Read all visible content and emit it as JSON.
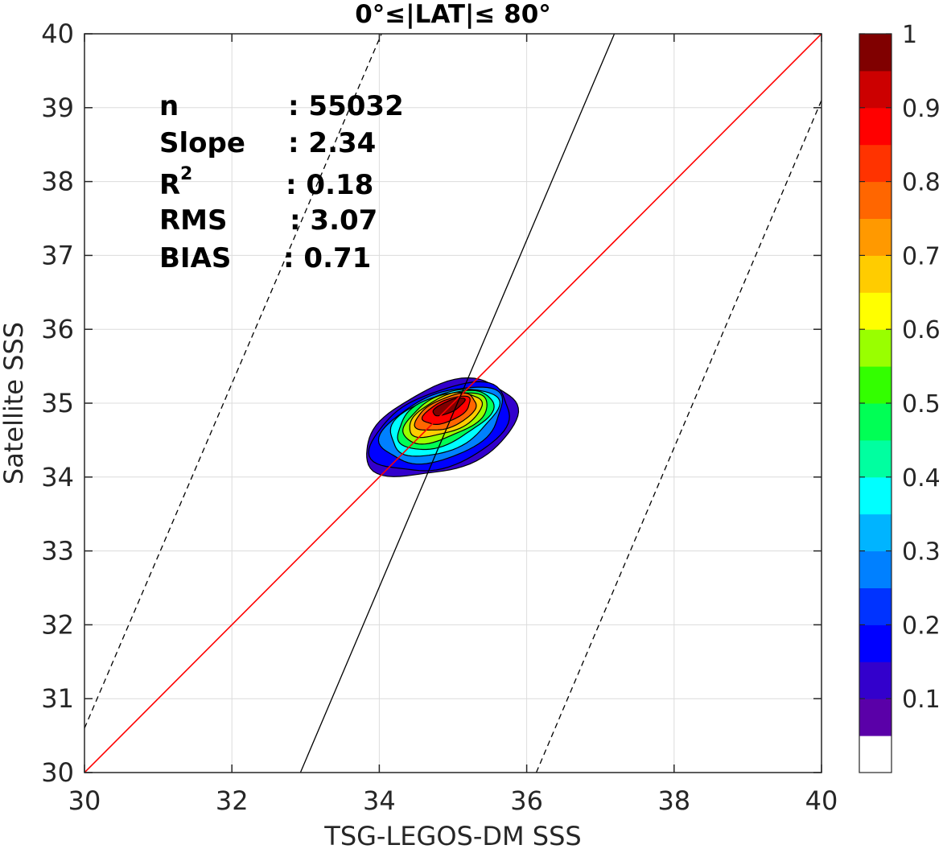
{
  "chart_data": {
    "type": "contour",
    "title": "0°≤|LAT|≤ 80°",
    "xlabel": "TSG-LEGOS-DM SSS",
    "ylabel": "Satellite SSS",
    "xlim": [
      30,
      40
    ],
    "ylim": [
      30,
      40
    ],
    "x_ticks": [
      "30",
      "32",
      "34",
      "36",
      "38",
      "40"
    ],
    "y_ticks": [
      "30",
      "31",
      "32",
      "33",
      "34",
      "35",
      "36",
      "37",
      "38",
      "39",
      "40"
    ],
    "grid": true,
    "stats": [
      {
        "label": "n",
        "value": ": 55032"
      },
      {
        "label": "Slope",
        "value": ": 2.34"
      },
      {
        "label": "R",
        "sup": "2",
        "value": ": 0.18"
      },
      {
        "label": "RMS",
        "value": ": 3.07"
      },
      {
        "label": "BIAS",
        "value": ": 0.71"
      }
    ],
    "lines": [
      {
        "name": "one-to-one",
        "color": "#ff0000",
        "style": "solid",
        "points": [
          [
            30,
            30
          ],
          [
            40,
            40
          ]
        ]
      },
      {
        "name": "regression",
        "color": "#000000",
        "style": "solid",
        "points": [
          [
            32.93,
            30
          ],
          [
            37.19,
            40
          ]
        ]
      },
      {
        "name": "upper-bound",
        "color": "#000000",
        "style": "dashed",
        "points": [
          [
            30,
            30.6
          ],
          [
            34.03,
            40
          ]
        ]
      },
      {
        "name": "lower-bound",
        "color": "#000000",
        "style": "dashed",
        "points": [
          [
            36.13,
            30
          ],
          [
            40,
            39.1
          ]
        ]
      }
    ],
    "density_center": [
      34.92,
      34.95
    ],
    "contour_levels": [
      {
        "level": 0.05,
        "rx": 1.12,
        "ry": 0.78,
        "cx": 34.85,
        "cy": 34.65
      },
      {
        "level": 0.1,
        "rx": 1.0,
        "ry": 0.72,
        "cx": 34.85,
        "cy": 34.66
      },
      {
        "level": 0.2,
        "rx": 0.86,
        "ry": 0.63,
        "cx": 34.86,
        "cy": 34.7
      },
      {
        "level": 0.3,
        "rx": 0.74,
        "ry": 0.56,
        "cx": 34.87,
        "cy": 34.74
      },
      {
        "level": 0.4,
        "rx": 0.64,
        "ry": 0.5,
        "cx": 34.88,
        "cy": 34.78
      },
      {
        "level": 0.5,
        "rx": 0.55,
        "ry": 0.44,
        "cx": 34.89,
        "cy": 34.81
      },
      {
        "level": 0.6,
        "rx": 0.47,
        "ry": 0.38,
        "cx": 34.9,
        "cy": 34.84
      },
      {
        "level": 0.7,
        "rx": 0.39,
        "ry": 0.32,
        "cx": 34.91,
        "cy": 34.87
      },
      {
        "level": 0.8,
        "rx": 0.28,
        "ry": 0.25,
        "cx": 34.92,
        "cy": 34.9
      },
      {
        "level": 0.9,
        "rx": 0.15,
        "ry": 0.17,
        "cx": 34.94,
        "cy": 34.95
      }
    ],
    "colorbar": {
      "ticks": [
        "0.1",
        "0.2",
        "0.3",
        "0.4",
        "0.5",
        "0.6",
        "0.7",
        "0.8",
        "0.9",
        "1"
      ],
      "colors": [
        "#ffffff",
        "#5a00a8",
        "#3300cc",
        "#0000ff",
        "#0033ff",
        "#0080ff",
        "#00b4ff",
        "#00ffff",
        "#00ffa0",
        "#00ff55",
        "#33ff00",
        "#99ff00",
        "#ffff00",
        "#ffcc00",
        "#ff9900",
        "#ff6600",
        "#ff3300",
        "#ff0000",
        "#cc0000",
        "#800000"
      ]
    }
  }
}
